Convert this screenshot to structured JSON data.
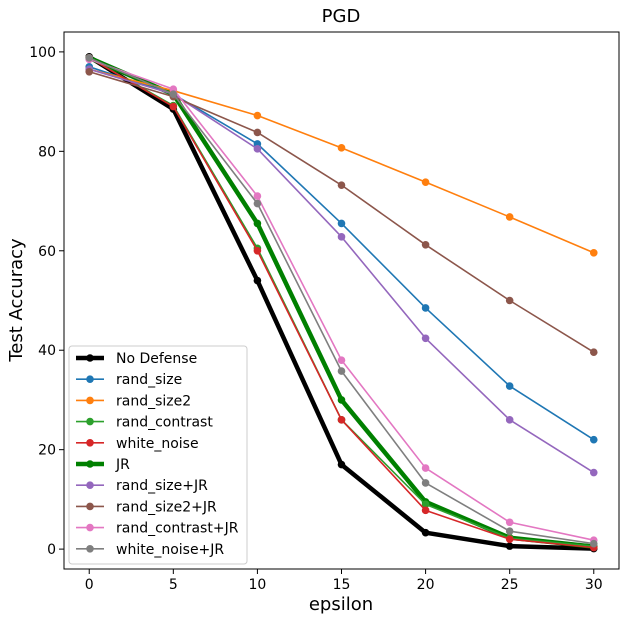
{
  "chart_data": {
    "type": "line",
    "title": "PGD",
    "xlabel": "epsilon",
    "ylabel": "Test Accuracy",
    "x": [
      0,
      5,
      10,
      15,
      20,
      25,
      30
    ],
    "xlim": [
      -1.5,
      31.5
    ],
    "ylim": [
      -4,
      104
    ],
    "xticks": [
      0,
      5,
      10,
      15,
      20,
      25,
      30
    ],
    "yticks": [
      0,
      20,
      40,
      60,
      80,
      100
    ],
    "grid": false,
    "legend_position": "lower-left",
    "series": [
      {
        "name": "No Defense",
        "color": "#000000",
        "thick": true,
        "values": [
          99.0,
          88.5,
          54.0,
          17.0,
          3.3,
          0.6,
          0.1
        ]
      },
      {
        "name": "rand_size",
        "color": "#1f77b4",
        "thick": false,
        "values": [
          97.0,
          91.5,
          81.5,
          65.5,
          48.5,
          32.8,
          22.0
        ]
      },
      {
        "name": "rand_size2",
        "color": "#ff7f0e",
        "thick": false,
        "values": [
          96.5,
          92.2,
          87.2,
          80.7,
          73.8,
          66.8,
          59.6
        ]
      },
      {
        "name": "rand_contrast",
        "color": "#2ca02c",
        "thick": false,
        "values": [
          98.8,
          89.2,
          60.5,
          26.0,
          9.0,
          2.2,
          0.6
        ]
      },
      {
        "name": "white_noise",
        "color": "#d62728",
        "thick": false,
        "values": [
          98.8,
          89.0,
          60.0,
          26.0,
          7.8,
          2.0,
          0.3
        ]
      },
      {
        "name": "JR",
        "color": "#008000",
        "thick": true,
        "values": [
          98.8,
          91.5,
          65.5,
          30.0,
          9.5,
          2.3,
          0.5
        ]
      },
      {
        "name": "rand_size+JR",
        "color": "#9467bd",
        "thick": false,
        "values": [
          96.5,
          91.5,
          80.5,
          62.8,
          42.4,
          26.0,
          15.4
        ]
      },
      {
        "name": "rand_size2+JR",
        "color": "#8c564b",
        "thick": false,
        "values": [
          96.0,
          91.0,
          83.8,
          73.2,
          61.2,
          50.0,
          39.6
        ]
      },
      {
        "name": "rand_contrast+JR",
        "color": "#e377c2",
        "thick": false,
        "values": [
          98.5,
          92.5,
          71.0,
          38.0,
          16.3,
          5.4,
          1.8
        ]
      },
      {
        "name": "white_noise+JR",
        "color": "#7f7f7f",
        "thick": false,
        "values": [
          98.8,
          91.5,
          69.5,
          35.8,
          13.3,
          3.6,
          1.1
        ]
      }
    ]
  }
}
